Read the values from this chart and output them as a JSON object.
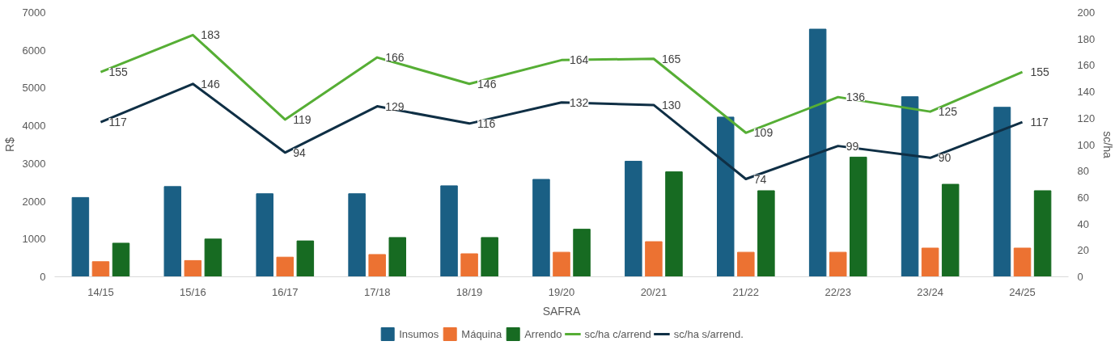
{
  "chart_data": {
    "type": "bar",
    "xlabel": "SAFRA",
    "ylabel": "R$",
    "y2label": "sc/ha",
    "categories": [
      "14/15",
      "15/16",
      "16/17",
      "17/18",
      "18/19",
      "19/20",
      "20/21",
      "21/22",
      "22/23",
      "23/24",
      "24/25"
    ],
    "series": [
      {
        "name": "Insumos",
        "color": "#1a5f84",
        "values": [
          2100,
          2390,
          2200,
          2200,
          2410,
          2580,
          3060,
          4230,
          6560,
          4770,
          4490
        ]
      },
      {
        "name": "Máquina",
        "color": "#ec7232",
        "values": [
          400,
          430,
          520,
          590,
          610,
          650,
          930,
          650,
          650,
          760,
          760
        ]
      },
      {
        "name": "Arrendo",
        "color": "#176b22",
        "values": [
          890,
          1000,
          950,
          1040,
          1040,
          1260,
          2780,
          2280,
          3170,
          2450,
          2280
        ]
      },
      {
        "name": "sc/ha c/arrend",
        "type": "line",
        "axis": "y2",
        "color": "#56ae35",
        "data_labels": true,
        "values": [
          155,
          183,
          119,
          166,
          146,
          164,
          165,
          109,
          136,
          125,
          155
        ]
      },
      {
        "name": "sc/ha s/arrend.",
        "type": "line",
        "axis": "y2",
        "color": "#0f2f45",
        "data_labels": true,
        "values": [
          117,
          146,
          94,
          129,
          116,
          132,
          130,
          74,
          99,
          90,
          117
        ]
      }
    ],
    "ylim": [
      0,
      7000
    ],
    "yticks": [
      0,
      1000,
      2000,
      3000,
      4000,
      5000,
      6000,
      7000
    ],
    "y2lim": [
      0,
      200
    ],
    "y2ticks": [
      0,
      20,
      40,
      60,
      80,
      100,
      120,
      140,
      160,
      180,
      200
    ],
    "grid": false,
    "legend": "bottom"
  }
}
